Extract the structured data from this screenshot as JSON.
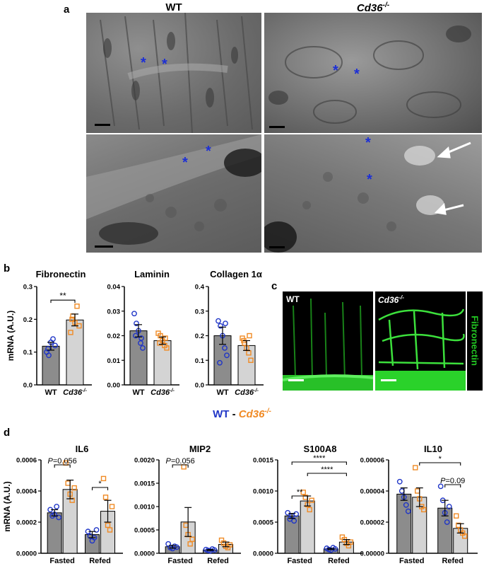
{
  "panel_a": {
    "letter": "a",
    "col_wt": "WT",
    "col_ko": "Cd36",
    "col_ko_sup": "-/-",
    "asterisk": "*"
  },
  "panel_b": {
    "letter": "b"
  },
  "panel_c": {
    "letter": "c",
    "label_wt": "WT",
    "label_ko": "Cd36",
    "label_ko_sup": "-/-",
    "stain": "Fibronectin"
  },
  "legend": {
    "wt": "WT",
    "sep": " - ",
    "ko": "Cd36",
    "ko_sup": "-/-"
  },
  "panel_d": {
    "letter": "d"
  },
  "colors": {
    "wt_bar": "#8c8c8c",
    "ko_bar": "#d4d4d4",
    "wt_point": "#1f35c7",
    "ko_point": "#f08a24",
    "fibronectin": "#22c722"
  },
  "chart_data": [
    {
      "type": "bar",
      "title": "Fibronectin",
      "ylabel": "mRNA (A.U.)",
      "ylim": [
        0,
        0.3
      ],
      "yticks": [
        "0.0",
        "0.1",
        "0.2",
        "0.3"
      ],
      "categories": [
        "WT",
        "Cd36-/-"
      ],
      "values": [
        0.118,
        0.198
      ],
      "sem": [
        0.012,
        0.018
      ],
      "points": [
        [
          0.1,
          0.09,
          0.13,
          0.14,
          0.12,
          0.11
        ],
        [
          0.16,
          0.21,
          0.19,
          0.24,
          0.18,
          0.2
        ]
      ],
      "annotations": [
        {
          "text": "**",
          "between": [
            0,
            1
          ]
        }
      ]
    },
    {
      "type": "bar",
      "title": "Laminin",
      "ylim": [
        0,
        0.04
      ],
      "yticks": [
        "0.00",
        "0.01",
        "0.02",
        "0.03",
        "0.04"
      ],
      "categories": [
        "WT",
        "Cd36-/-"
      ],
      "values": [
        0.022,
        0.018
      ],
      "sem": [
        0.0025,
        0.0015
      ],
      "points": [
        [
          0.029,
          0.025,
          0.022,
          0.017,
          0.015,
          0.02,
          0.019
        ],
        [
          0.021,
          0.02,
          0.018,
          0.016,
          0.015,
          0.017,
          0.019
        ]
      ]
    },
    {
      "type": "bar",
      "title": "Collagen 1α",
      "ylim": [
        0,
        0.4
      ],
      "yticks": [
        "0.0",
        "0.1",
        "0.2",
        "0.3",
        "0.4"
      ],
      "categories": [
        "WT",
        "Cd36-/-"
      ],
      "values": [
        0.2,
        0.16
      ],
      "sem": [
        0.035,
        0.02
      ],
      "points": [
        [
          0.26,
          0.24,
          0.2,
          0.15,
          0.12,
          0.09,
          0.25
        ],
        [
          0.19,
          0.17,
          0.15,
          0.13,
          0.1,
          0.18,
          0.2
        ]
      ]
    },
    {
      "type": "bar",
      "title": "IL6",
      "ylabel": "mRNA (A.U.)",
      "ylim": [
        0,
        0.0006
      ],
      "yticks": [
        "0.0000",
        "0.0002",
        "0.0004",
        "0.0006"
      ],
      "categories": [
        "Fasted",
        "Refed"
      ],
      "series": [
        {
          "values": [
            0.00026,
            0.00012
          ],
          "sem": [
            2e-05,
            2e-05
          ],
          "points": [
            [
              0.00028,
              0.00024,
              0.00025,
              0.0003,
              0.00023
            ],
            [
              0.00014,
              0.00011,
              8e-05,
              0.0001,
              0.00015
            ]
          ]
        },
        {
          "values": [
            0.00041,
            0.00027
          ],
          "sem": [
            6e-05,
            7e-05
          ],
          "points": [
            [
              0.00058,
              0.00045,
              0.00038,
              0.00034,
              0.00042
            ],
            [
              0.00048,
              0.00036,
              0.00018,
              0.00015,
              0.0003
            ]
          ]
        }
      ],
      "annotations": [
        {
          "text": "P=0.056",
          "group": 0
        },
        {
          "text": "*",
          "group": 1
        }
      ]
    },
    {
      "type": "bar",
      "title": "MIP2",
      "ylim": [
        0,
        0.002
      ],
      "yticks": [
        "0.0000",
        "0.0005",
        "0.0010",
        "0.0015",
        "0.0020"
      ],
      "categories": [
        "Fasted",
        "Refed"
      ],
      "series": [
        {
          "values": [
            0.00014,
            7e-05
          ],
          "sem": [
            3e-05,
            1e-05
          ],
          "points": [
            [
              0.0002,
              0.00012,
              0.0001,
              0.00015,
              0.00013
            ],
            [
              8e-05,
              6e-05,
              5e-05,
              9e-05,
              7e-05
            ]
          ]
        },
        {
          "values": [
            0.00067,
            0.00019
          ],
          "sem": [
            0.00031,
            5e-05
          ],
          "points": [
            [
              0.00185,
              0.0006,
              0.0004,
              0.0002,
              0.0003
            ],
            [
              0.00028,
              0.00022,
              0.00015,
              0.00012,
              0.00018
            ]
          ]
        }
      ],
      "annotations": [
        {
          "text": "P=0.056",
          "group": 0
        }
      ]
    },
    {
      "type": "bar",
      "title": "S100A8",
      "ylim": [
        0,
        0.0015
      ],
      "yticks": [
        "0.0000",
        "0.0005",
        "0.0010",
        "0.0015"
      ],
      "categories": [
        "Fasted",
        "Refed"
      ],
      "series": [
        {
          "values": [
            0.0006,
            7e-05
          ],
          "sem": [
            4e-05,
            1e-05
          ],
          "points": [
            [
              0.00065,
              0.00055,
              0.0006,
              0.00052,
              0.00063
            ],
            [
              8e-05,
              6e-05,
              5e-05,
              9e-05,
              7e-05
            ]
          ]
        },
        {
          "values": [
            0.00084,
            0.00018
          ],
          "sem": [
            8e-05,
            4e-05
          ],
          "points": [
            [
              0.00098,
              0.0009,
              0.00078,
              0.0007,
              0.00085
            ],
            [
              0.00026,
              0.00022,
              0.00016,
              0.00012,
              0.00018
            ]
          ]
        }
      ],
      "annotations": [
        {
          "text": "**"
        },
        {
          "text": "****"
        },
        {
          "text": "****"
        }
      ]
    },
    {
      "type": "bar",
      "title": "IL10",
      "ylim": [
        0,
        6e-05
      ],
      "yticks": [
        "0.00000",
        "0.00002",
        "0.00004",
        "0.00006"
      ],
      "categories": [
        "Fasted",
        "Refed"
      ],
      "series": [
        {
          "values": [
            3.8e-05,
            2.9e-05
          ],
          "sem": [
            4e-06,
            5e-06
          ],
          "points": [
            [
              4.6e-05,
              4e-05,
              3.6e-05,
              3.1e-05,
              2.7e-05
            ],
            [
              4.3e-05,
              3.4e-05,
              2.6e-05,
              2e-05,
              3e-05
            ]
          ]
        },
        {
          "values": [
            3.6e-05,
            1.6e-05
          ],
          "sem": [
            6e-06,
            3e-06
          ],
          "points": [
            [
              5.5e-05,
              4e-05,
              3.5e-05,
              3e-05,
              2.8e-05
            ],
            [
              2.4e-05,
              1.8e-05,
              1.5e-05,
              1.3e-05,
              1.1e-05
            ]
          ]
        }
      ],
      "annotations": [
        {
          "text": "*"
        },
        {
          "text": "P=0.09"
        }
      ]
    }
  ]
}
